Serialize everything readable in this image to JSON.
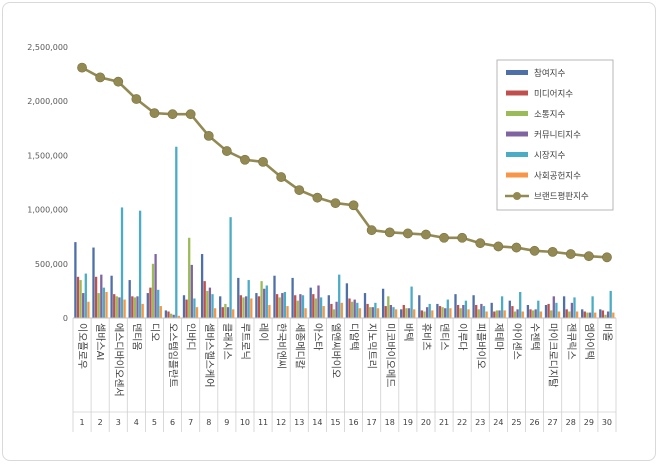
{
  "chart_data": {
    "type": "bar",
    "title": "",
    "xlabel": "",
    "ylabel": "",
    "ylim": [
      0,
      2500000
    ],
    "yticks": [
      "0",
      "500,000",
      "1,000,000",
      "1,500,000",
      "2,000,000",
      "2,500,000"
    ],
    "grid": false,
    "legend_position": "top-right",
    "ranks": [
      "1",
      "2",
      "3",
      "4",
      "5",
      "6",
      "7",
      "8",
      "9",
      "10",
      "11",
      "12",
      "13",
      "14",
      "15",
      "16",
      "17",
      "18",
      "19",
      "20",
      "21",
      "22",
      "23",
      "24",
      "25",
      "26",
      "27",
      "28",
      "29",
      "30"
    ],
    "categories": [
      "이오플로우",
      "셀바스AI",
      "에스디바이오센서",
      "덴티움",
      "디오",
      "오스템임플란트",
      "인바디",
      "셀바스헬스케어",
      "클래시스",
      "루트로닉",
      "레이",
      "한국비엔씨",
      "세종메디칼",
      "아스타",
      "엘앤씨바이오",
      "디알텍",
      "지노믹트리",
      "미코바이오메드",
      "바텍",
      "휴비츠",
      "덴티스",
      "이루다",
      "피플바이오",
      "제테마",
      "아이센스",
      "수젠텍",
      "마이크로디지탈",
      "젠큐릭스",
      "엠아이텍",
      "비올"
    ],
    "series": [
      {
        "name": "참여지수",
        "color": "#4f6fa8",
        "values": [
          700000,
          650000,
          390000,
          350000,
          230000,
          70000,
          210000,
          590000,
          200000,
          370000,
          230000,
          390000,
          370000,
          280000,
          210000,
          320000,
          230000,
          270000,
          80000,
          210000,
          130000,
          220000,
          210000,
          140000,
          160000,
          120000,
          120000,
          200000,
          80000,
          80000
        ]
      },
      {
        "name": "미디어지수",
        "color": "#c0504d",
        "values": [
          380000,
          380000,
          220000,
          200000,
          280000,
          60000,
          170000,
          340000,
          100000,
          210000,
          200000,
          220000,
          210000,
          220000,
          130000,
          180000,
          130000,
          110000,
          120000,
          70000,
          110000,
          120000,
          120000,
          60000,
          110000,
          80000,
          130000,
          80000,
          60000,
          70000
        ]
      },
      {
        "name": "소통지수",
        "color": "#9bbb59",
        "values": [
          350000,
          230000,
          200000,
          190000,
          500000,
          40000,
          740000,
          250000,
          130000,
          190000,
          340000,
          190000,
          160000,
          180000,
          80000,
          150000,
          100000,
          200000,
          90000,
          60000,
          100000,
          90000,
          80000,
          70000,
          60000,
          70000,
          70000,
          60000,
          50000,
          30000
        ]
      },
      {
        "name": "커뮤니티지수",
        "color": "#8064a2",
        "values": [
          230000,
          400000,
          190000,
          200000,
          590000,
          30000,
          490000,
          280000,
          100000,
          200000,
          270000,
          230000,
          220000,
          300000,
          150000,
          170000,
          100000,
          120000,
          90000,
          100000,
          90000,
          120000,
          130000,
          70000,
          80000,
          80000,
          200000,
          140000,
          50000,
          60000
        ]
      },
      {
        "name": "시장지수",
        "color": "#4bacc6",
        "values": [
          410000,
          280000,
          1020000,
          990000,
          260000,
          1580000,
          180000,
          220000,
          930000,
          350000,
          300000,
          240000,
          210000,
          190000,
          400000,
          140000,
          140000,
          100000,
          290000,
          130000,
          170000,
          160000,
          110000,
          200000,
          240000,
          160000,
          140000,
          190000,
          200000,
          250000
        ]
      },
      {
        "name": "사회공헌지수",
        "color": "#f79646",
        "values": [
          150000,
          240000,
          170000,
          130000,
          110000,
          20000,
          100000,
          90000,
          80000,
          180000,
          120000,
          110000,
          90000,
          110000,
          140000,
          90000,
          90000,
          80000,
          80000,
          70000,
          90000,
          80000,
          60000,
          70000,
          60000,
          60000,
          60000,
          60000,
          50000,
          50000
        ]
      }
    ],
    "line": {
      "name": "브랜드평판지수",
      "color": "#938953",
      "values": [
        2310000,
        2220000,
        2180000,
        2020000,
        1890000,
        1880000,
        1880000,
        1680000,
        1540000,
        1460000,
        1440000,
        1300000,
        1180000,
        1110000,
        1060000,
        1040000,
        810000,
        790000,
        780000,
        770000,
        740000,
        740000,
        690000,
        660000,
        650000,
        620000,
        610000,
        590000,
        570000,
        560000
      ]
    }
  }
}
